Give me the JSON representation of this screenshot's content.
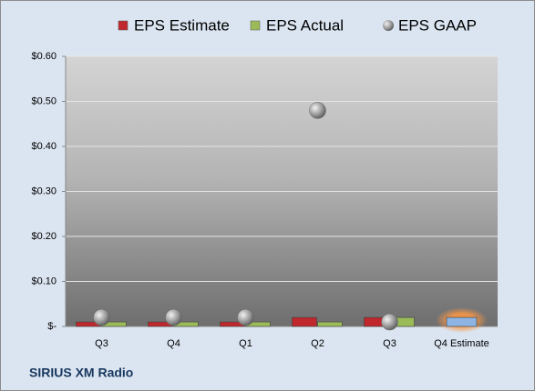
{
  "chart_data": {
    "type": "bar",
    "categories": [
      "Q3",
      "Q4",
      "Q1",
      "Q2",
      "Q3",
      "Q4 Estimate"
    ],
    "series": [
      {
        "name": "EPS Estimate",
        "color": "#c0282d",
        "values": [
          0.01,
          0.01,
          0.01,
          0.02,
          0.02,
          0.02
        ],
        "highlight_last_color": "#8db4e2"
      },
      {
        "name": "EPS Actual",
        "color": "#9bbb59",
        "values": [
          0.01,
          0.01,
          0.01,
          0.01,
          0.02,
          null
        ]
      },
      {
        "name": "EPS GAAP",
        "color": "#a6a6a6",
        "values": [
          0.02,
          0.02,
          0.02,
          0.48,
          0.01,
          null
        ],
        "marker": "bubble"
      }
    ],
    "ylim": [
      0,
      0.6
    ],
    "yticks": [
      {
        "value": 0,
        "label": "$-"
      },
      {
        "value": 0.1,
        "label": "$0.10"
      },
      {
        "value": 0.2,
        "label": "$0.20"
      },
      {
        "value": 0.3,
        "label": "$0.30"
      },
      {
        "value": 0.4,
        "label": "$0.40"
      },
      {
        "value": 0.5,
        "label": "$0.50"
      },
      {
        "value": 0.6,
        "label": "$0.60"
      }
    ],
    "grid": true,
    "legend": "top",
    "footer": "SIRIUS XM Radio"
  }
}
